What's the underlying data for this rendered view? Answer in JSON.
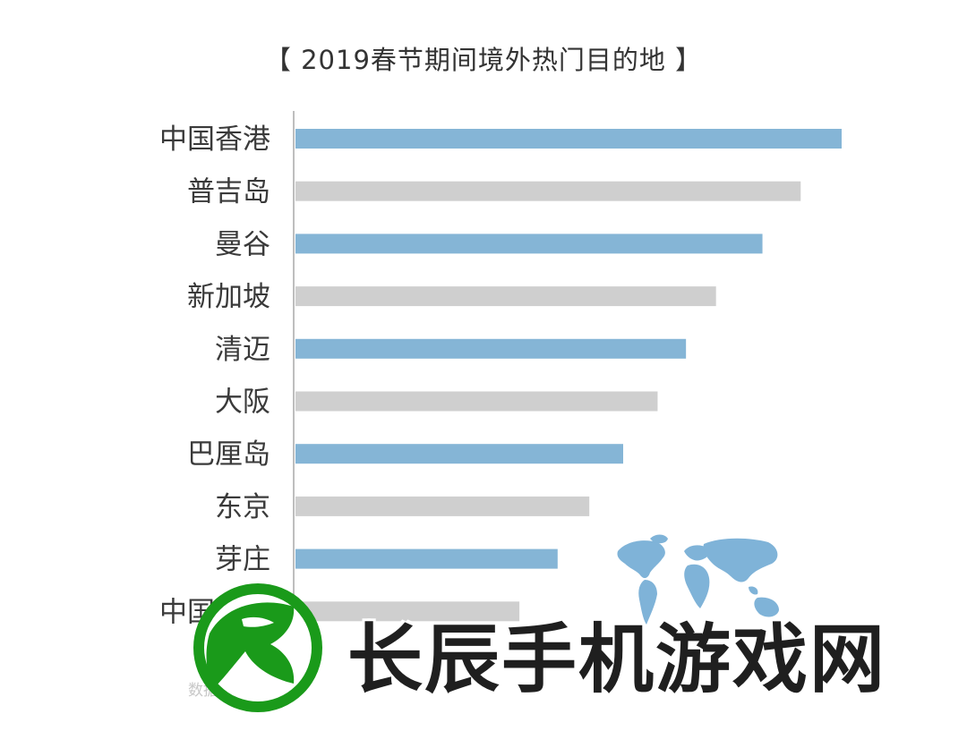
{
  "chart_data": {
    "type": "bar",
    "orientation": "horizontal",
    "title": "【 2019春节期间境外热门目的地 】",
    "categories": [
      "中国香港",
      "普吉岛",
      "曼谷",
      "新加坡",
      "清迈",
      "大阪",
      "巴厘岛",
      "东京",
      "芽庄",
      "中国澳门"
    ],
    "values": [
      100,
      92.5,
      85.5,
      77,
      71.5,
      66.3,
      60,
      53.8,
      48,
      41
    ],
    "bar_colors": [
      "#85b5d6",
      "#cfcfcf",
      "#85b5d6",
      "#cfcfcf",
      "#85b5d6",
      "#cfcfcf",
      "#85b5d6",
      "#cfcfcf",
      "#85b5d6",
      "#cfcfcf"
    ],
    "xlim": [
      0,
      100
    ],
    "grid": false,
    "xlabel": "",
    "ylabel": ""
  },
  "source_note": "数据来源",
  "watermark": {
    "text": "长辰手机游戏网",
    "logo_color": "#1a9a1a"
  },
  "colors": {
    "axis": "#a8a8a8",
    "blue_bar": "#85b5d6",
    "gray_bar": "#cfcfcf",
    "globe": "#7fb3d8"
  }
}
